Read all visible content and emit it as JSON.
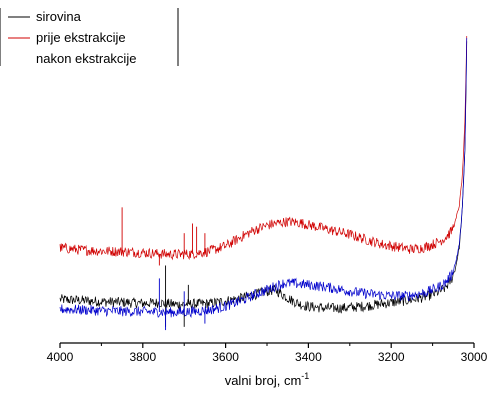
{
  "chart_data": {
    "type": "line",
    "title": "",
    "xlabel": "valni broj, cm",
    "xlabel_superscript": "-1",
    "ylabel": "",
    "xlim": [
      4000,
      3000
    ],
    "x_reversed": true,
    "ylim": [
      0,
      100
    ],
    "xticks": [
      "4000",
      "3800",
      "3600",
      "3400",
      "3200",
      "3000"
    ],
    "yticks_shown": false,
    "grid": false,
    "legend_position": "top-left",
    "series": [
      {
        "name": "sirovina",
        "color": "#000000",
        "points": [
          [
            4000,
            13.5
          ],
          [
            3950,
            13.2
          ],
          [
            3900,
            12.8
          ],
          [
            3850,
            12.6
          ],
          [
            3800,
            12.3
          ],
          [
            3760,
            12.5
          ],
          [
            3720,
            11.9
          ],
          [
            3680,
            12.1
          ],
          [
            3640,
            12.2
          ],
          [
            3600,
            13.0
          ],
          [
            3560,
            14.0
          ],
          [
            3530,
            15.0
          ],
          [
            3500,
            16.0
          ],
          [
            3480,
            16.5
          ],
          [
            3460,
            14.8
          ],
          [
            3440,
            13.2
          ],
          [
            3420,
            12.0
          ],
          [
            3400,
            11.3
          ],
          [
            3360,
            10.8
          ],
          [
            3320,
            10.8
          ],
          [
            3280,
            11.2
          ],
          [
            3240,
            11.8
          ],
          [
            3200,
            12.5
          ],
          [
            3160,
            13.2
          ],
          [
            3120,
            14.2
          ],
          [
            3090,
            15.5
          ],
          [
            3070,
            17.0
          ],
          [
            3055,
            19.5
          ],
          [
            3045,
            23.0
          ],
          [
            3035,
            30.0
          ],
          [
            3028,
            42.0
          ],
          [
            3022,
            60.0
          ],
          [
            3019,
            80.0
          ],
          [
            3017,
            98.0
          ]
        ],
        "spikes": [
          [
            3745,
            24.0
          ],
          [
            3745,
            5.0
          ],
          [
            3700,
            5.0
          ],
          [
            3690,
            18.0
          ]
        ]
      },
      {
        "name": "prije ekstrakcije",
        "color": "#d00000",
        "points": [
          [
            4000,
            29.5
          ],
          [
            3950,
            28.8
          ],
          [
            3900,
            28.5
          ],
          [
            3850,
            28.3
          ],
          [
            3800,
            28.0
          ],
          [
            3760,
            27.6
          ],
          [
            3720,
            27.4
          ],
          [
            3680,
            27.6
          ],
          [
            3640,
            28.4
          ],
          [
            3600,
            30.0
          ],
          [
            3560,
            33.0
          ],
          [
            3530,
            35.0
          ],
          [
            3500,
            36.4
          ],
          [
            3480,
            37.0
          ],
          [
            3450,
            37.6
          ],
          [
            3420,
            37.2
          ],
          [
            3380,
            36.0
          ],
          [
            3340,
            34.8
          ],
          [
            3300,
            33.6
          ],
          [
            3260,
            32.0
          ],
          [
            3220,
            30.5
          ],
          [
            3180,
            29.6
          ],
          [
            3150,
            29.0
          ],
          [
            3120,
            29.6
          ],
          [
            3090,
            31.0
          ],
          [
            3070,
            32.5
          ],
          [
            3055,
            34.5
          ],
          [
            3045,
            37.5
          ],
          [
            3035,
            43.0
          ],
          [
            3028,
            52.0
          ],
          [
            3022,
            68.0
          ],
          [
            3019,
            85.0
          ],
          [
            3017,
            98.0
          ]
        ],
        "spikes": [
          [
            3850,
            42.0
          ],
          [
            3760,
            24.0
          ],
          [
            3700,
            34.0
          ],
          [
            3680,
            37.0
          ],
          [
            3670,
            36.0
          ],
          [
            3650,
            34.0
          ]
        ]
      },
      {
        "name": "nakon ekstrakcije",
        "color": "#0000cc",
        "points": [
          [
            4000,
            10.5
          ],
          [
            3950,
            10.3
          ],
          [
            3900,
            10.0
          ],
          [
            3850,
            9.8
          ],
          [
            3800,
            9.7
          ],
          [
            3760,
            9.6
          ],
          [
            3720,
            9.5
          ],
          [
            3680,
            9.7
          ],
          [
            3640,
            10.2
          ],
          [
            3600,
            11.4
          ],
          [
            3560,
            13.2
          ],
          [
            3530,
            15.0
          ],
          [
            3500,
            16.5
          ],
          [
            3480,
            17.6
          ],
          [
            3460,
            18.5
          ],
          [
            3440,
            18.5
          ],
          [
            3400,
            18.0
          ],
          [
            3360,
            17.4
          ],
          [
            3320,
            16.5
          ],
          [
            3280,
            15.6
          ],
          [
            3240,
            15.0
          ],
          [
            3200,
            14.6
          ],
          [
            3160,
            14.6
          ],
          [
            3120,
            15.5
          ],
          [
            3090,
            17.0
          ],
          [
            3070,
            18.6
          ],
          [
            3055,
            21.0
          ],
          [
            3045,
            24.5
          ],
          [
            3035,
            31.0
          ],
          [
            3028,
            42.0
          ],
          [
            3022,
            60.0
          ],
          [
            3019,
            82.0
          ],
          [
            3017,
            98.0
          ]
        ],
        "spikes": [
          [
            3760,
            20.0
          ],
          [
            3745,
            4.0
          ],
          [
            3700,
            16.0
          ],
          [
            3650,
            6.0
          ]
        ]
      }
    ],
    "legend_entries": [
      "sirovina",
      "prije ekstrakcije",
      "nakon ekstrakcije"
    ]
  }
}
